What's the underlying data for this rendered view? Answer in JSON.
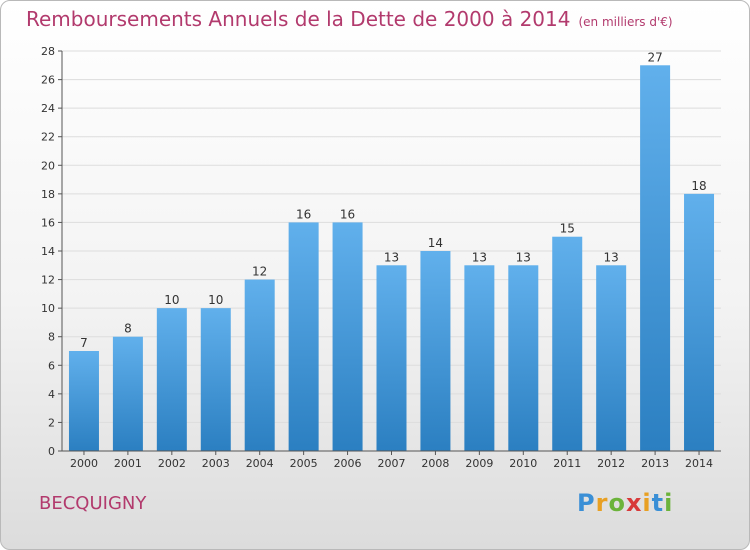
{
  "title": "Remboursements Annuels de la Dette de 2000 à 2014",
  "unit": "(en milliers d'€)",
  "commune": "BECQUIGNY",
  "logo": {
    "letters": [
      {
        "ch": "P",
        "color": "#3a8fd6"
      },
      {
        "ch": "r",
        "color": "#e8a023"
      },
      {
        "ch": "o",
        "color": "#6bb33a"
      },
      {
        "ch": "x",
        "color": "#d83a3a"
      },
      {
        "ch": "i",
        "color": "#e8a023"
      },
      {
        "ch": "t",
        "color": "#3a8fd6"
      },
      {
        "ch": "i",
        "color": "#6bb33a"
      }
    ]
  },
  "colors": {
    "bar_light": "#61b0ec",
    "bar_dark": "#2b7fc1",
    "grid": "#dddddd",
    "axis": "#555555"
  },
  "chart_data": {
    "type": "bar",
    "categories": [
      "2000",
      "2001",
      "2002",
      "2003",
      "2004",
      "2005",
      "2006",
      "2007",
      "2008",
      "2009",
      "2010",
      "2011",
      "2012",
      "2013",
      "2014"
    ],
    "values": [
      7,
      8,
      10,
      10,
      12,
      16,
      16,
      13,
      14,
      13,
      13,
      15,
      13,
      27,
      18
    ],
    "ylim": [
      0,
      28
    ],
    "yticks": [
      0,
      2,
      4,
      6,
      8,
      10,
      12,
      14,
      16,
      18,
      20,
      22,
      24,
      26,
      28
    ],
    "grid": true
  }
}
